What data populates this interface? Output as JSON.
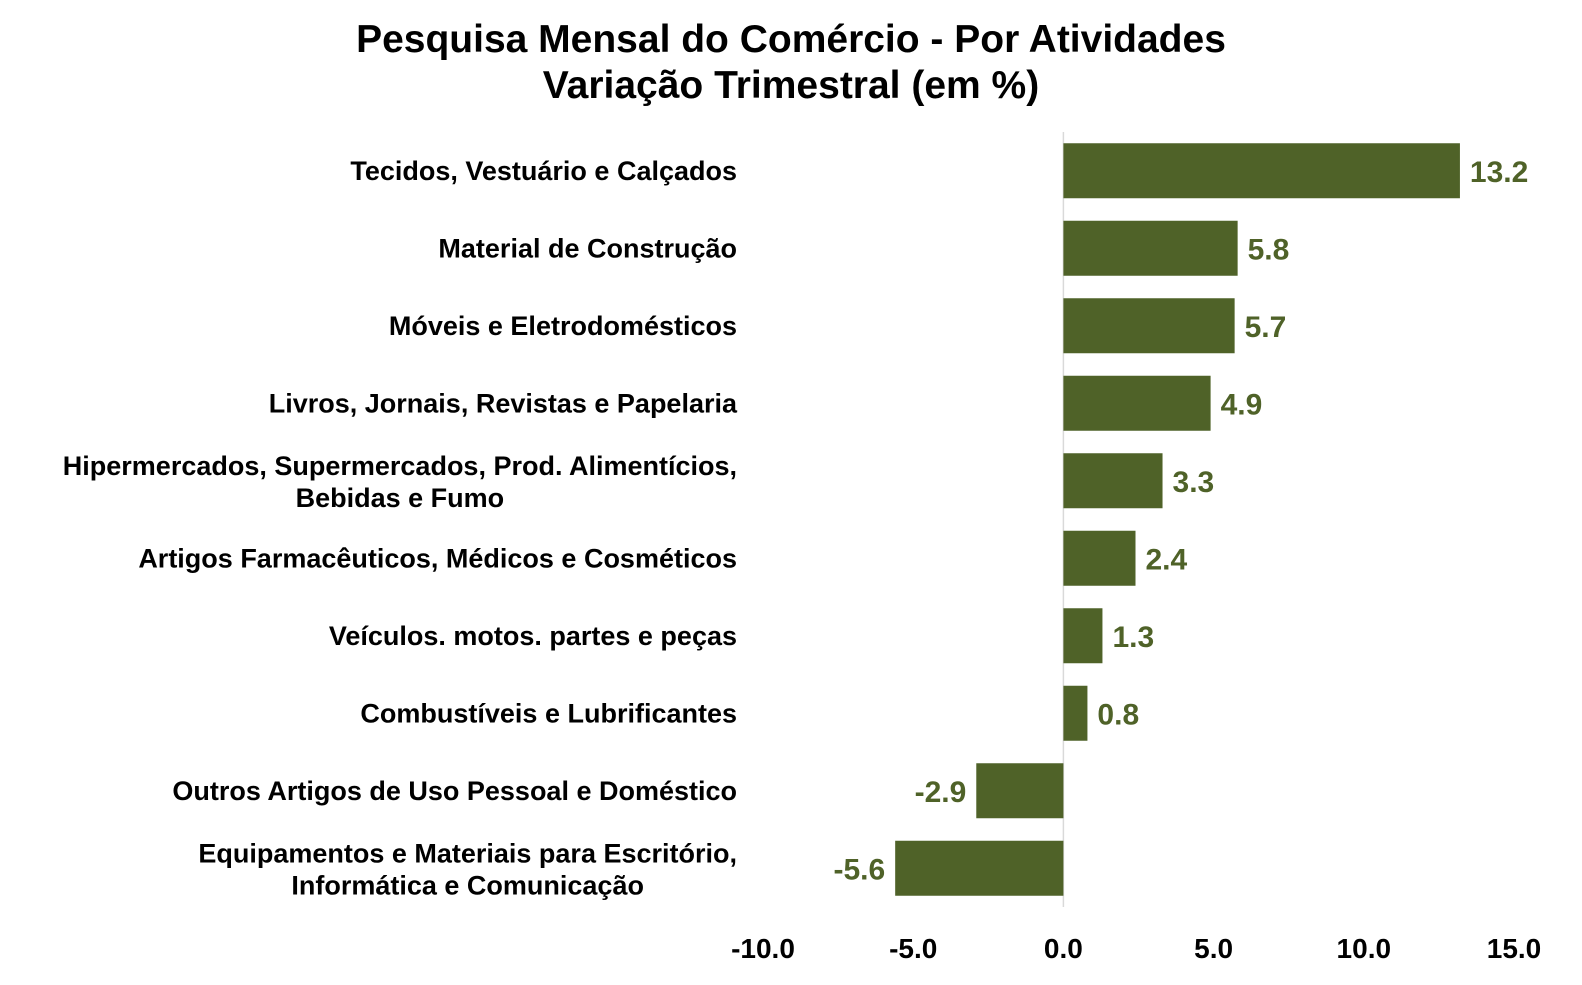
{
  "chart_data": {
    "type": "bar",
    "orientation": "horizontal",
    "title": "Pesquisa Mensal do Comércio - Por Atividades",
    "subtitle": "Variação Trimestral (em %)",
    "categories": [
      [
        "Tecidos, Vestuário e Calçados"
      ],
      [
        "Material de Construção"
      ],
      [
        "Móveis e Eletrodomésticos"
      ],
      [
        "Livros, Jornais, Revistas e Papelaria"
      ],
      [
        "Hipermercados, Supermercados, Prod. Alimentícios,",
        "Bebidas e Fumo"
      ],
      [
        "Artigos Farmacêuticos, Médicos e Cosméticos"
      ],
      [
        "Veículos. motos. partes e peças"
      ],
      [
        "Combustíveis e Lubrificantes"
      ],
      [
        "Outros Artigos de Uso Pessoal e Doméstico"
      ],
      [
        "Equipamentos e Materiais para Escritório,",
        "Informática e Comunicação"
      ]
    ],
    "values": [
      13.2,
      5.8,
      5.7,
      4.9,
      3.3,
      2.4,
      1.3,
      0.8,
      -2.9,
      -5.6
    ],
    "value_labels": [
      "13.2",
      "5.8",
      "5.7",
      "4.9",
      "3.3",
      "2.4",
      "1.3",
      "0.8",
      "-2.9",
      "-5.6"
    ],
    "xlim": [
      -10,
      15
    ],
    "x_ticks": [
      -10,
      -5,
      0,
      5,
      10,
      15
    ],
    "x_tick_labels": [
      "-10.0",
      "-5.0",
      "0.0",
      "5.0",
      "10.0",
      "15.0"
    ],
    "grid": false,
    "legend": "none",
    "colors": {
      "bar": "#4f6228",
      "value_label": "#4f6228",
      "zero_line": "#d9d9d9"
    }
  }
}
